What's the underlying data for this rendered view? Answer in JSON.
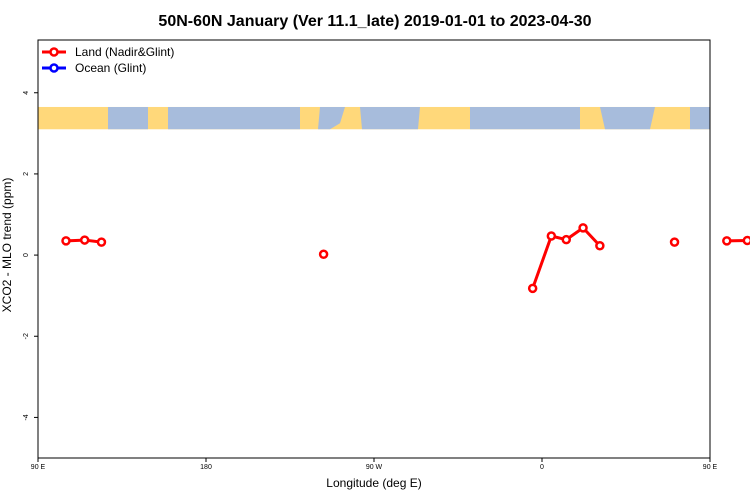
{
  "chart_data": {
    "type": "line",
    "title": "50N-60N January (Ver 11.1_late)   2019-01-01 to 2023-04-30",
    "xlabel": "Longitude (deg E)",
    "ylabel": "XCO2 - MLO trend (ppm)",
    "xlim": [
      90,
      450
    ],
    "ylim": [
      -5,
      5.3
    ],
    "x_ticks": [
      {
        "value": 90,
        "label": "90 E"
      },
      {
        "value": 180,
        "label": "180"
      },
      {
        "value": 270,
        "label": "90 W"
      },
      {
        "value": 360,
        "label": "0"
      },
      {
        "value": 450,
        "label": "90 E"
      },
      {
        "value": 540,
        "label": "180"
      }
    ],
    "y_ticks": [
      {
        "value": -4,
        "label": "-4"
      },
      {
        "value": -2,
        "label": "-2"
      },
      {
        "value": 0,
        "label": "0"
      },
      {
        "value": 2,
        "label": "2"
      },
      {
        "value": 4,
        "label": "4"
      }
    ],
    "legend_position": "top-left",
    "grid": false,
    "map_strip": {
      "description": "world land/ocean strip for 50N-60N",
      "y_range": [
        3.1,
        3.65
      ],
      "land_color": "#ffd87a",
      "ocean_color": "#a7bcdc"
    },
    "series": [
      {
        "name": "Land (Nadir&Glint)",
        "color": "#ff0000",
        "segments": [
          [
            [
              105,
              0.35
            ],
            [
              115,
              0.37
            ],
            [
              124,
              0.32
            ]
          ],
          [
            [
              243,
              0.02
            ]
          ],
          [
            [
              355,
              -0.82
            ],
            [
              365,
              0.47
            ],
            [
              373,
              0.38
            ],
            [
              382,
              0.67
            ],
            [
              391,
              0.23
            ]
          ],
          [
            [
              431,
              0.32
            ]
          ],
          [
            [
              459,
              0.35
            ],
            [
              470,
              0.36
            ],
            [
              479,
              0.32
            ]
          ]
        ]
      },
      {
        "name": "Ocean (Glint)",
        "color": "#0000ff",
        "segments": []
      }
    ]
  }
}
